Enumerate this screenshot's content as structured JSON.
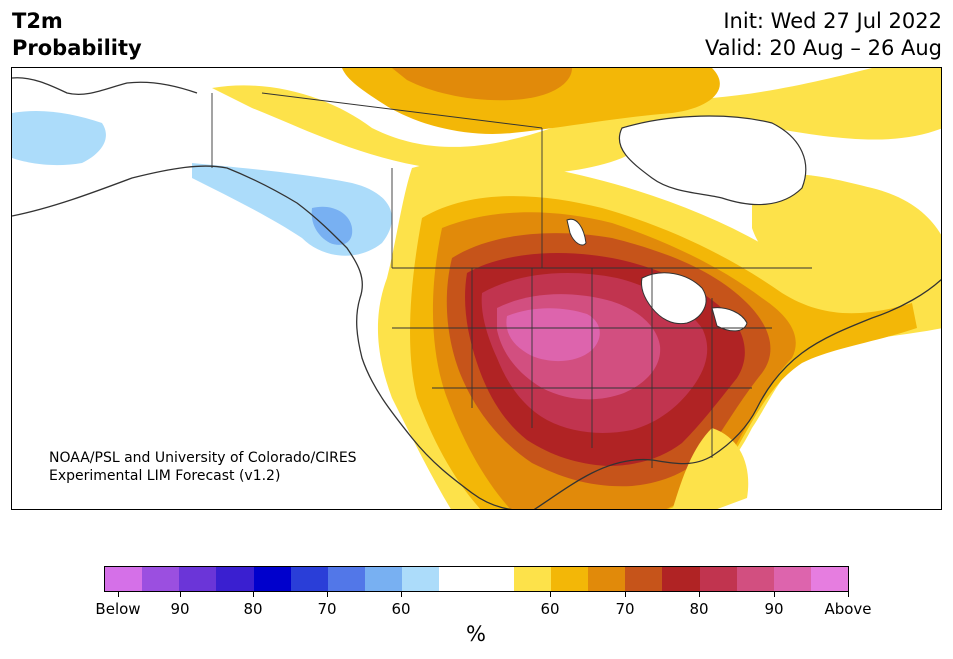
{
  "header": {
    "title_line1": "T2m",
    "title_line2": "Probability",
    "init_text": "Init: Wed 27 Jul 2022",
    "valid_text": "Valid: 20 Aug – 26 Aug"
  },
  "credit": {
    "line1": "NOAA/PSL and University of Colorado/CIRES",
    "line2": "Experimental LIM Forecast (v1.2)"
  },
  "colorbar": {
    "unit": "%",
    "colors": [
      "#d570e8",
      "#9b4fe0",
      "#6b35d8",
      "#3a1fd0",
      "#0000cc",
      "#2a3ed8",
      "#5277e8",
      "#78b0f2",
      "#acdcfa",
      "#ffffff",
      "#ffffff",
      "#fde24a",
      "#f3b707",
      "#e18a0a",
      "#c6541a",
      "#b02324",
      "#c1344f",
      "#d24f80",
      "#dd64ad",
      "#e67de0"
    ],
    "tick_labels": [
      "Below",
      "90",
      "80",
      "70",
      "60",
      "60",
      "70",
      "80",
      "90",
      "Above"
    ]
  },
  "map": {
    "region": "North America",
    "legend_colors": {
      "white": "#ffffff",
      "yellow": "#fde24a",
      "gold": "#f3b707",
      "orange": "#e18a0a",
      "burnt": "#c6541a",
      "red": "#b02324",
      "crimson": "#c1344f",
      "rose": "#d24f80",
      "pink": "#dd64ad",
      "light_blue": "#acdcfa",
      "mid_blue": "#78b0f2",
      "coast": "#333333"
    }
  }
}
